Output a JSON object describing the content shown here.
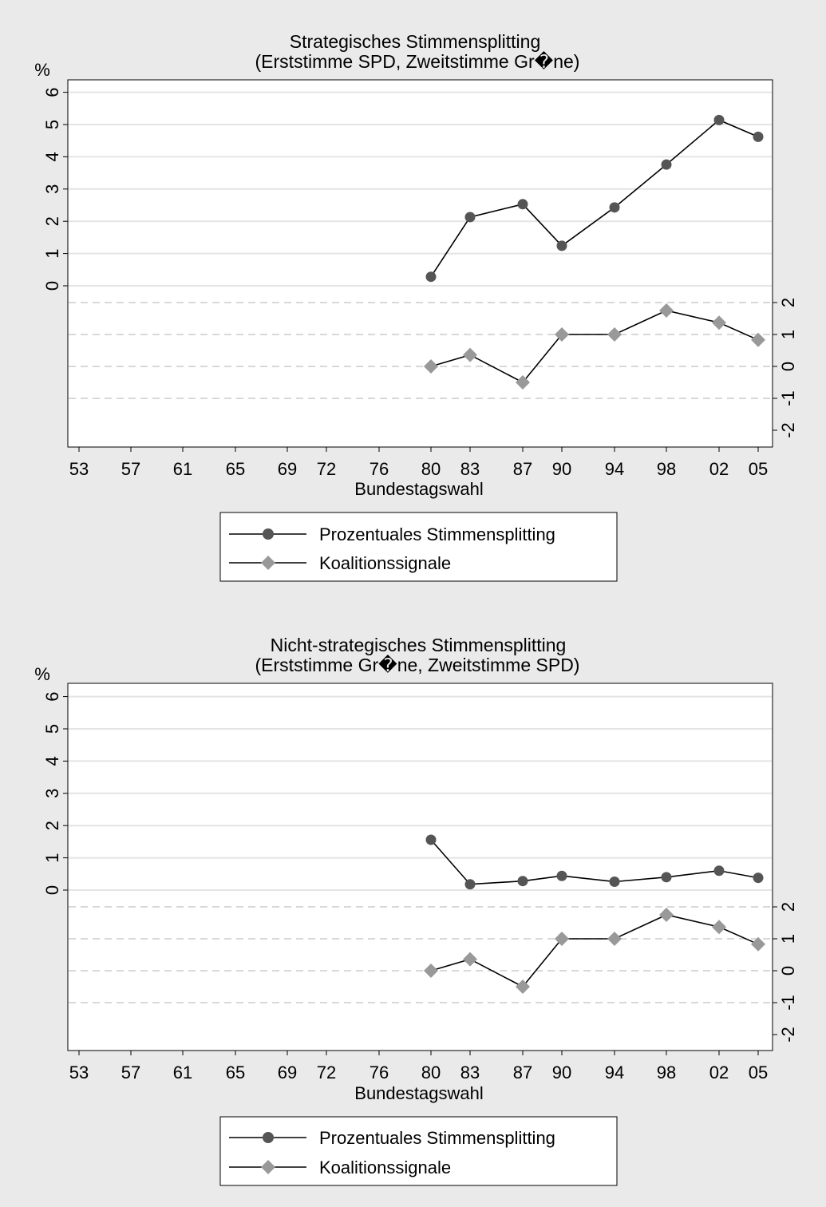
{
  "chart_data": [
    {
      "type": "line",
      "title": "Strategisches Stimmensplitting",
      "subtitle": "(Erststimme SPD, Zweitstimme Gr�ne)",
      "xlabel": "Bundestagswahl",
      "ylabel": "%",
      "categories": [
        "53",
        "57",
        "61",
        "65",
        "69",
        "72",
        "76",
        "80",
        "83",
        "87",
        "90",
        "94",
        "98",
        "02",
        "05"
      ],
      "y_left": {
        "range": [
          0,
          6
        ],
        "ticks": [
          "0",
          "1",
          "2",
          "3",
          "4",
          "5",
          "6"
        ]
      },
      "y_right": {
        "range": [
          -2,
          2
        ],
        "ticks": [
          "-2",
          "-1",
          "0",
          "1",
          "2"
        ]
      },
      "grid": true,
      "legend_position": "bottom",
      "series": [
        {
          "name": "Prozentuales Stimmensplitting",
          "axis": "left",
          "marker": "circle",
          "color": "#555555",
          "x": [
            "80",
            "83",
            "87",
            "90",
            "94",
            "98",
            "02",
            "05"
          ],
          "values": [
            0.28,
            2.13,
            2.53,
            1.24,
            2.43,
            3.76,
            5.14,
            4.62
          ]
        },
        {
          "name": "Koalitionssignale",
          "axis": "right",
          "marker": "diamond",
          "color": "#999999",
          "x": [
            "80",
            "83",
            "87",
            "90",
            "94",
            "98",
            "02",
            "05"
          ],
          "values": [
            0,
            0.36,
            -0.5,
            1,
            1,
            1.75,
            1.37,
            0.83
          ]
        }
      ]
    },
    {
      "type": "line",
      "title": "Nicht-strategisches Stimmensplitting",
      "subtitle": "(Erststimme Gr�ne, Zweitstimme SPD)",
      "xlabel": "Bundestagswahl",
      "ylabel": "%",
      "categories": [
        "53",
        "57",
        "61",
        "65",
        "69",
        "72",
        "76",
        "80",
        "83",
        "87",
        "90",
        "94",
        "98",
        "02",
        "05"
      ],
      "y_left": {
        "range": [
          0,
          6
        ],
        "ticks": [
          "0",
          "1",
          "2",
          "3",
          "4",
          "5",
          "6"
        ]
      },
      "y_right": {
        "range": [
          -2,
          2
        ],
        "ticks": [
          "-2",
          "-1",
          "0",
          "1",
          "2"
        ]
      },
      "grid": true,
      "legend_position": "bottom",
      "series": [
        {
          "name": "Prozentuales Stimmensplitting",
          "axis": "left",
          "marker": "circle",
          "color": "#555555",
          "x": [
            "80",
            "83",
            "87",
            "90",
            "94",
            "98",
            "02",
            "05"
          ],
          "values": [
            1.56,
            0.18,
            0.28,
            0.44,
            0.26,
            0.4,
            0.6,
            0.38
          ]
        },
        {
          "name": "Koalitionssignale",
          "axis": "right",
          "marker": "diamond",
          "color": "#999999",
          "x": [
            "80",
            "83",
            "87",
            "90",
            "94",
            "98",
            "02",
            "05"
          ],
          "values": [
            0,
            0.36,
            -0.5,
            1,
            1,
            1.75,
            1.37,
            0.83
          ]
        }
      ]
    }
  ]
}
